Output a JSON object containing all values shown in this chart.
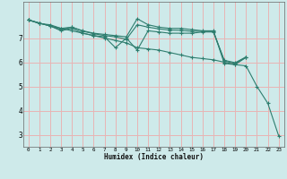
{
  "title": "",
  "xlabel": "Humidex (Indice chaleur)",
  "bg_color": "#ceeaea",
  "grid_color": "#e8b4b4",
  "line_color": "#2e7d6e",
  "xlim": [
    -0.5,
    23.5
  ],
  "ylim": [
    2.5,
    8.5
  ],
  "yticks": [
    3,
    4,
    5,
    6,
    7
  ],
  "xticks": [
    0,
    1,
    2,
    3,
    4,
    5,
    6,
    7,
    8,
    9,
    10,
    11,
    12,
    13,
    14,
    15,
    16,
    17,
    18,
    19,
    20,
    21,
    22,
    23
  ],
  "series": [
    {
      "x": [
        0,
        1,
        2,
        3,
        4,
        5,
        6,
        7,
        8,
        9,
        10,
        11,
        12,
        13,
        14,
        15,
        16,
        17,
        18,
        19,
        20,
        21,
        22,
        23
      ],
      "y": [
        7.75,
        7.6,
        7.55,
        7.4,
        7.3,
        7.2,
        7.1,
        7.0,
        6.9,
        6.8,
        6.6,
        6.55,
        6.5,
        6.4,
        6.3,
        6.2,
        6.15,
        6.1,
        6.0,
        5.9,
        5.85,
        5.0,
        4.3,
        2.95
      ]
    },
    {
      "x": [
        0,
        1,
        2,
        3,
        4,
        5,
        6,
        7,
        8,
        9,
        10,
        11,
        12,
        13,
        14,
        15,
        16,
        17,
        18,
        19,
        20
      ],
      "y": [
        7.75,
        7.62,
        7.5,
        7.4,
        7.45,
        7.3,
        7.2,
        7.15,
        7.1,
        7.05,
        7.8,
        7.55,
        7.45,
        7.4,
        7.4,
        7.35,
        7.3,
        7.3,
        5.95,
        5.9,
        6.2
      ]
    },
    {
      "x": [
        0,
        1,
        2,
        3,
        4,
        5,
        6,
        7,
        8,
        9,
        10,
        11,
        12,
        13,
        14,
        15,
        16,
        17,
        18,
        19,
        20
      ],
      "y": [
        7.75,
        7.62,
        7.5,
        7.35,
        7.45,
        7.28,
        7.18,
        7.1,
        7.05,
        6.95,
        7.55,
        7.45,
        7.38,
        7.33,
        7.32,
        7.28,
        7.28,
        7.28,
        6.05,
        5.95,
        6.2
      ]
    },
    {
      "x": [
        0,
        1,
        2,
        3,
        4,
        5,
        6,
        7,
        8,
        9,
        10,
        11,
        12,
        13,
        14,
        15,
        16,
        17,
        18,
        19,
        20
      ],
      "y": [
        7.75,
        7.62,
        7.5,
        7.3,
        7.4,
        7.2,
        7.1,
        7.05,
        6.6,
        7.0,
        6.5,
        7.3,
        7.25,
        7.2,
        7.2,
        7.2,
        7.25,
        7.25,
        6.08,
        5.98,
        6.22
      ]
    }
  ]
}
